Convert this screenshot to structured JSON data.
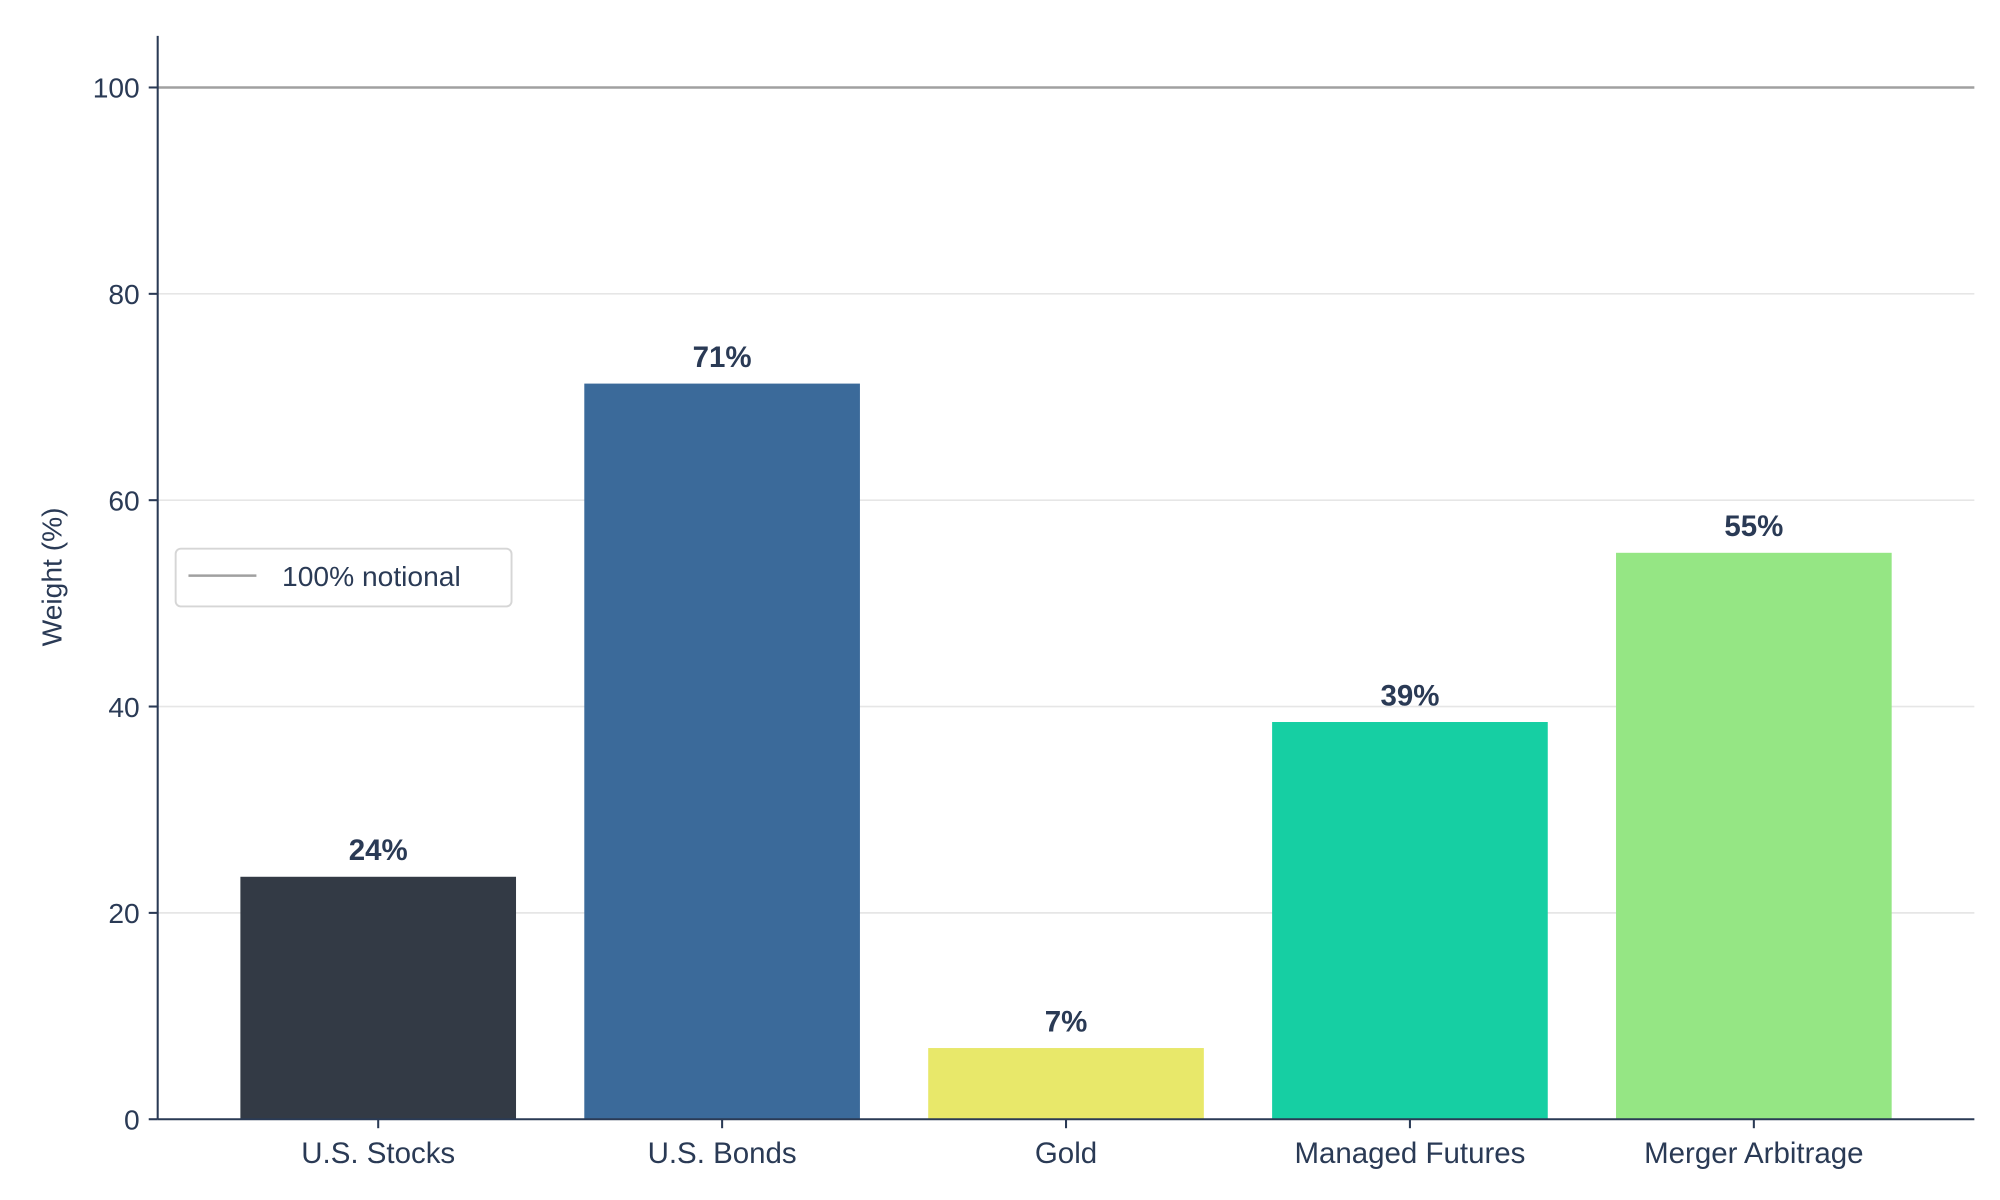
{
  "chart_data": {
    "type": "bar",
    "title": "",
    "xlabel": "",
    "ylabel": "Weight (%)",
    "ylim": [
      0,
      105
    ],
    "yticks": [
      0,
      20,
      40,
      60,
      80,
      100
    ],
    "grid": true,
    "categories": [
      "U.S. Stocks",
      "U.S. Bonds",
      "Gold",
      "Managed Futures",
      "Merger Arbitrage"
    ],
    "values": [
      23.5,
      71.3,
      6.9,
      38.5,
      54.9
    ],
    "data_labels": [
      "24%",
      "71%",
      "7%",
      "39%",
      "55%"
    ],
    "colors": [
      "#333a45",
      "#3b6a9a",
      "#e8e86a",
      "#16cfa3",
      "#95e684"
    ],
    "reference_line": {
      "value": 100,
      "label": "100% notional",
      "color": "#a0a0a0"
    },
    "legend": {
      "placement": "center-left",
      "entries": [
        "100% notional"
      ]
    }
  }
}
